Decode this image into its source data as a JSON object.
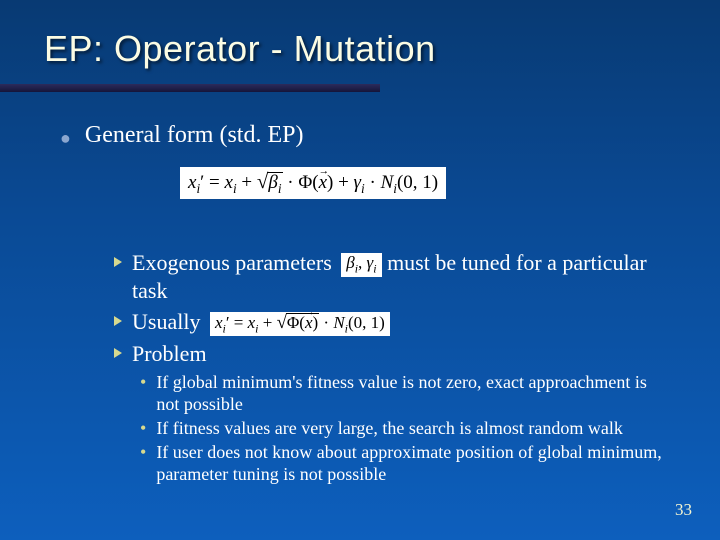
{
  "title": "EP: Operator - Mutation",
  "l1_text": "General form (std. EP)",
  "main_formula_html": "<span class='ital'>x</span><span class='sub ital'>i</span>&#8242; = <span class='ital'>x</span><span class='sub ital'>i</span> + <span class='sqrt'><span class='bar'><span class='ital'>&beta;</span><span class='sub ital'>i</span></span></span> &middot; &Phi;(<span class='vec ital'>x</span>) + <span class='ital'>&gamma;</span><span class='sub ital'>i</span> &middot; <span class='ital'>N</span><span class='sub ital'>i</span>(0, 1)",
  "l2_items": [
    {
      "pre": "Exogenous parameters ",
      "formula_html": "<span class='ital'>&beta;</span><span class='sub ital'>i</span>, <span class='ital'>&gamma;</span><span class='sub ital'>i</span>",
      "post": " must be tuned for a particular task"
    },
    {
      "pre": "Usually  ",
      "formula_html": "<span class='ital'>x</span><span class='sub ital'>i</span>&#8242; = <span class='ital'>x</span><span class='sub ital'>i</span> + <span class='sqrt'><span class='bar'>&Phi;(<span class='vec ital'>x</span>)</span></span> &middot; <span class='ital'>N</span><span class='sub ital'>i</span>(0, 1)",
      "post": ""
    },
    {
      "pre": "Problem",
      "formula_html": "",
      "post": ""
    }
  ],
  "l3_items": [
    "If global minimum's fitness value is not zero, exact approachment is not possible",
    "If fitness values are very large, the search is almost random walk",
    "If user does not know about approximate position of global minimum, parameter tuning is not possible"
  ],
  "page_number": "33",
  "colors": {
    "title_color": "#fbfce4",
    "bullet_l1": "#8aa6cf",
    "bullet_l3": "#d7d98f",
    "arrow_fill": "#cfd28a"
  }
}
